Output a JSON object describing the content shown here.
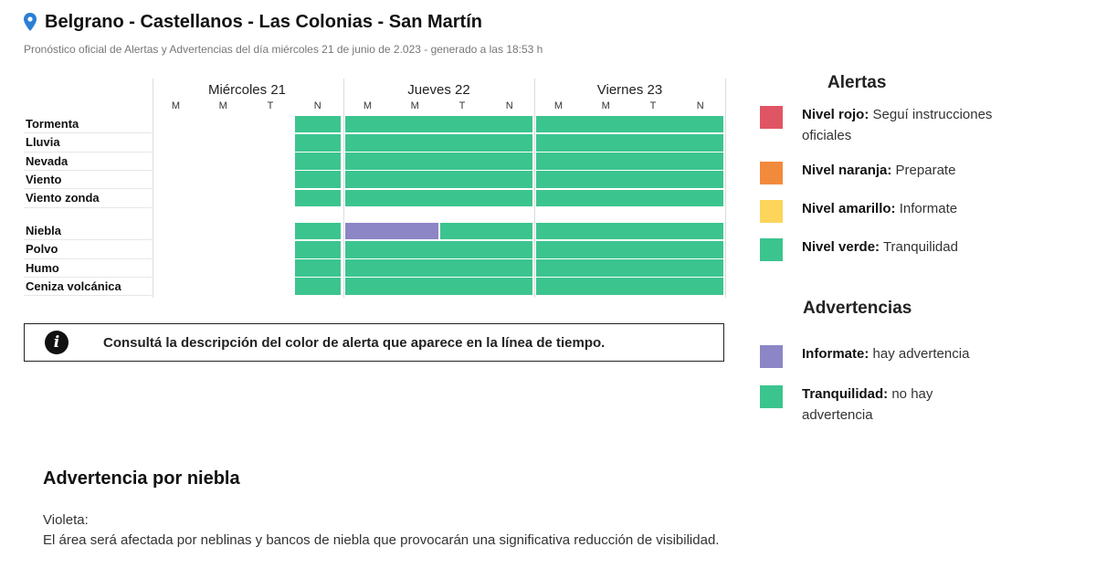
{
  "header": {
    "location": "Belgrano - Castellanos - Las Colonias - San Martín",
    "subtitle": "Pronóstico oficial de Alertas y Advertencias del día miércoles 21 de junio de 2.023 - generado a las 18:53 h",
    "icon": "location-pin-icon"
  },
  "timeline": {
    "days": [
      {
        "label": "Miércoles 21",
        "slots": [
          "M",
          "M",
          "T",
          "N"
        ]
      },
      {
        "label": "Jueves 22",
        "slots": [
          "M",
          "M",
          "T",
          "N"
        ]
      },
      {
        "label": "Viernes 23",
        "slots": [
          "M",
          "M",
          "T",
          "N"
        ]
      }
    ],
    "groups": [
      {
        "rows": [
          "Tormenta",
          "Lluvia",
          "Nevada",
          "Viento",
          "Viento zonda"
        ]
      },
      {
        "rows": [
          "Niebla",
          "Polvo",
          "Humo",
          "Ceniza volcánica"
        ]
      }
    ],
    "cells": {
      "Tormenta": [
        "",
        "",
        "",
        "verde",
        "verde",
        "verde",
        "verde",
        "verde",
        "verde",
        "verde",
        "verde",
        "verde"
      ],
      "Lluvia": [
        "",
        "",
        "",
        "verde",
        "verde",
        "verde",
        "verde",
        "verde",
        "verde",
        "verde",
        "verde",
        "verde"
      ],
      "Nevada": [
        "",
        "",
        "",
        "verde",
        "verde",
        "verde",
        "verde",
        "verde",
        "verde",
        "verde",
        "verde",
        "verde"
      ],
      "Viento": [
        "",
        "",
        "",
        "verde",
        "verde",
        "verde",
        "verde",
        "verde",
        "verde",
        "verde",
        "verde",
        "verde"
      ],
      "Viento zonda": [
        "",
        "",
        "",
        "verde",
        "verde",
        "verde",
        "verde",
        "verde",
        "verde",
        "verde",
        "verde",
        "verde"
      ],
      "Niebla": [
        "",
        "",
        "",
        "verde",
        "violeta",
        "violeta",
        "verde",
        "verde",
        "verde",
        "verde",
        "verde",
        "verde"
      ],
      "Polvo": [
        "",
        "",
        "",
        "verde",
        "verde",
        "verde",
        "verde",
        "verde",
        "verde",
        "verde",
        "verde",
        "verde"
      ],
      "Humo": [
        "",
        "",
        "",
        "verde",
        "verde",
        "verde",
        "verde",
        "verde",
        "verde",
        "verde",
        "verde",
        "verde"
      ],
      "Ceniza volcánica": [
        "",
        "",
        "",
        "verde",
        "verde",
        "verde",
        "verde",
        "verde",
        "verde",
        "verde",
        "verde",
        "verde"
      ]
    }
  },
  "colors": {
    "verde": "#3cc48f",
    "violeta": "#8c86c6",
    "rojo": "#e05563",
    "naranja": "#f28a3c",
    "amarillo": "#fdd55b"
  },
  "info": {
    "icon": "info-icon",
    "text": "Consultá la descripción del color de alerta que aparece en la línea de tiempo."
  },
  "legend": {
    "alerts_title": "Alertas",
    "alerts": [
      {
        "bold": "Nivel rojo:",
        "text": " Seguí instrucciones oficiales",
        "color": "#e05563"
      },
      {
        "bold": "Nivel naranja:",
        "text": " Preparate",
        "color": "#f28a3c"
      },
      {
        "bold": "Nivel amarillo:",
        "text": " Informate",
        "color": "#fdd55b"
      },
      {
        "bold": "Nivel verde:",
        "text": " Tranquilidad",
        "color": "#3cc48f"
      }
    ],
    "warnings_title": "Advertencias",
    "warnings": [
      {
        "bold": "Informate:",
        "text": " hay advertencia",
        "color": "#8c86c6"
      },
      {
        "bold": "Tranquilidad:",
        "text": " no hay advertencia",
        "color": "#3cc48f"
      }
    ]
  },
  "warning_section": {
    "title": "Advertencia por niebla",
    "color_label": "Violeta:",
    "description": "El área será afectada por neblinas y bancos de niebla que provocarán una significativa reducción de visibilidad."
  }
}
